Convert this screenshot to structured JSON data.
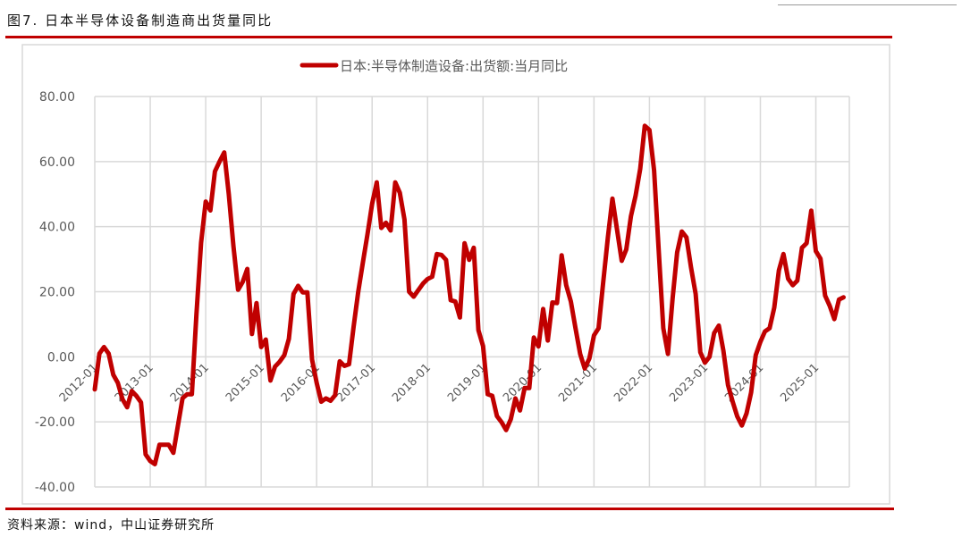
{
  "header": {
    "title": "图7. 日本半导体设备制造商出货量同比"
  },
  "footer": {
    "source": "资料来源：wind，中山证券研究所"
  },
  "colors": {
    "series": "#c00000",
    "grid": "#d9d9d9",
    "accent": "#c00000"
  },
  "chart_data": {
    "type": "line",
    "title": "",
    "xlabel": "",
    "ylabel": "",
    "ylim": [
      -40,
      80
    ],
    "y_ticks": [
      "80.00",
      "60.00",
      "40.00",
      "20.00",
      "0.00",
      "-20.00",
      "-40.00"
    ],
    "y_tick_values": [
      80,
      60,
      40,
      20,
      0,
      -20,
      -40
    ],
    "x_tick_labels": [
      "2012-01",
      "2013-01",
      "2014-01",
      "2015-01",
      "2016-01",
      "2017-01",
      "2018-01",
      "2019-01",
      "2020-01",
      "2021-01",
      "2022-01",
      "2023-01",
      "2024-01",
      "2025-01"
    ],
    "grid": true,
    "legend_position": "top-center",
    "x_start": "2012-01",
    "x_frequency": "monthly",
    "series": [
      {
        "name": "日本:半导体制造设备:出货额:当月同比",
        "values": [
          -10,
          1,
          3,
          1,
          -5.5,
          -8,
          -13,
          -15.5,
          -10.5,
          -12,
          -14,
          -30,
          -32,
          -33,
          -27,
          -27,
          -27,
          -29.5,
          -21,
          -12.7,
          -11.5,
          -11.5,
          13,
          35,
          47.7,
          45,
          57,
          60,
          62.8,
          50,
          34,
          20.6,
          23,
          27,
          7,
          16.5,
          3,
          5.3,
          -7.3,
          -3,
          -1.5,
          0.5,
          5.5,
          19.3,
          21.8,
          19.8,
          19.8,
          -0.8,
          -8,
          -13.8,
          -12.8,
          -13.5,
          -11.8,
          -1.4,
          -2.8,
          -2.3,
          9.2,
          20,
          29,
          37.6,
          47,
          53.6,
          39.6,
          41.2,
          38.8,
          53.6,
          50.4,
          42.2,
          20,
          18.5,
          20.5,
          22.5,
          23.9,
          24.6,
          31.6,
          31.3,
          29.8,
          17.4,
          17,
          12.1,
          34.9,
          29.8,
          33.5,
          8.2,
          3.3,
          -11.5,
          -12,
          -18.2,
          -20.1,
          -22.5,
          -19.2,
          -12.8,
          -16.5,
          -9.6,
          -9.6,
          5.9,
          3.2,
          14.7,
          5,
          16.7,
          16.5,
          31.2,
          22,
          17,
          8.8,
          0.9,
          -3.6,
          -0.5,
          6.6,
          8.8,
          22.9,
          36.7,
          48.6,
          39,
          29.5,
          33,
          43.2,
          49.5,
          57.8,
          71,
          69.7,
          57.3,
          33,
          8.8,
          0.9,
          17.9,
          32.1,
          38.5,
          36.7,
          27.5,
          19.3,
          1.4,
          -1.8,
          0,
          7.3,
          9.6,
          1.9,
          -8.7,
          -13.8,
          -18.3,
          -21.1,
          -17.4,
          -11,
          0.5,
          4.6,
          7.8,
          8.8,
          15.1,
          26.6,
          31.6,
          24,
          22,
          23.4,
          33.5,
          34.9,
          44.9,
          32.5,
          30.2,
          18.8,
          15.7,
          11.6,
          17.6,
          18.3
        ]
      }
    ]
  }
}
